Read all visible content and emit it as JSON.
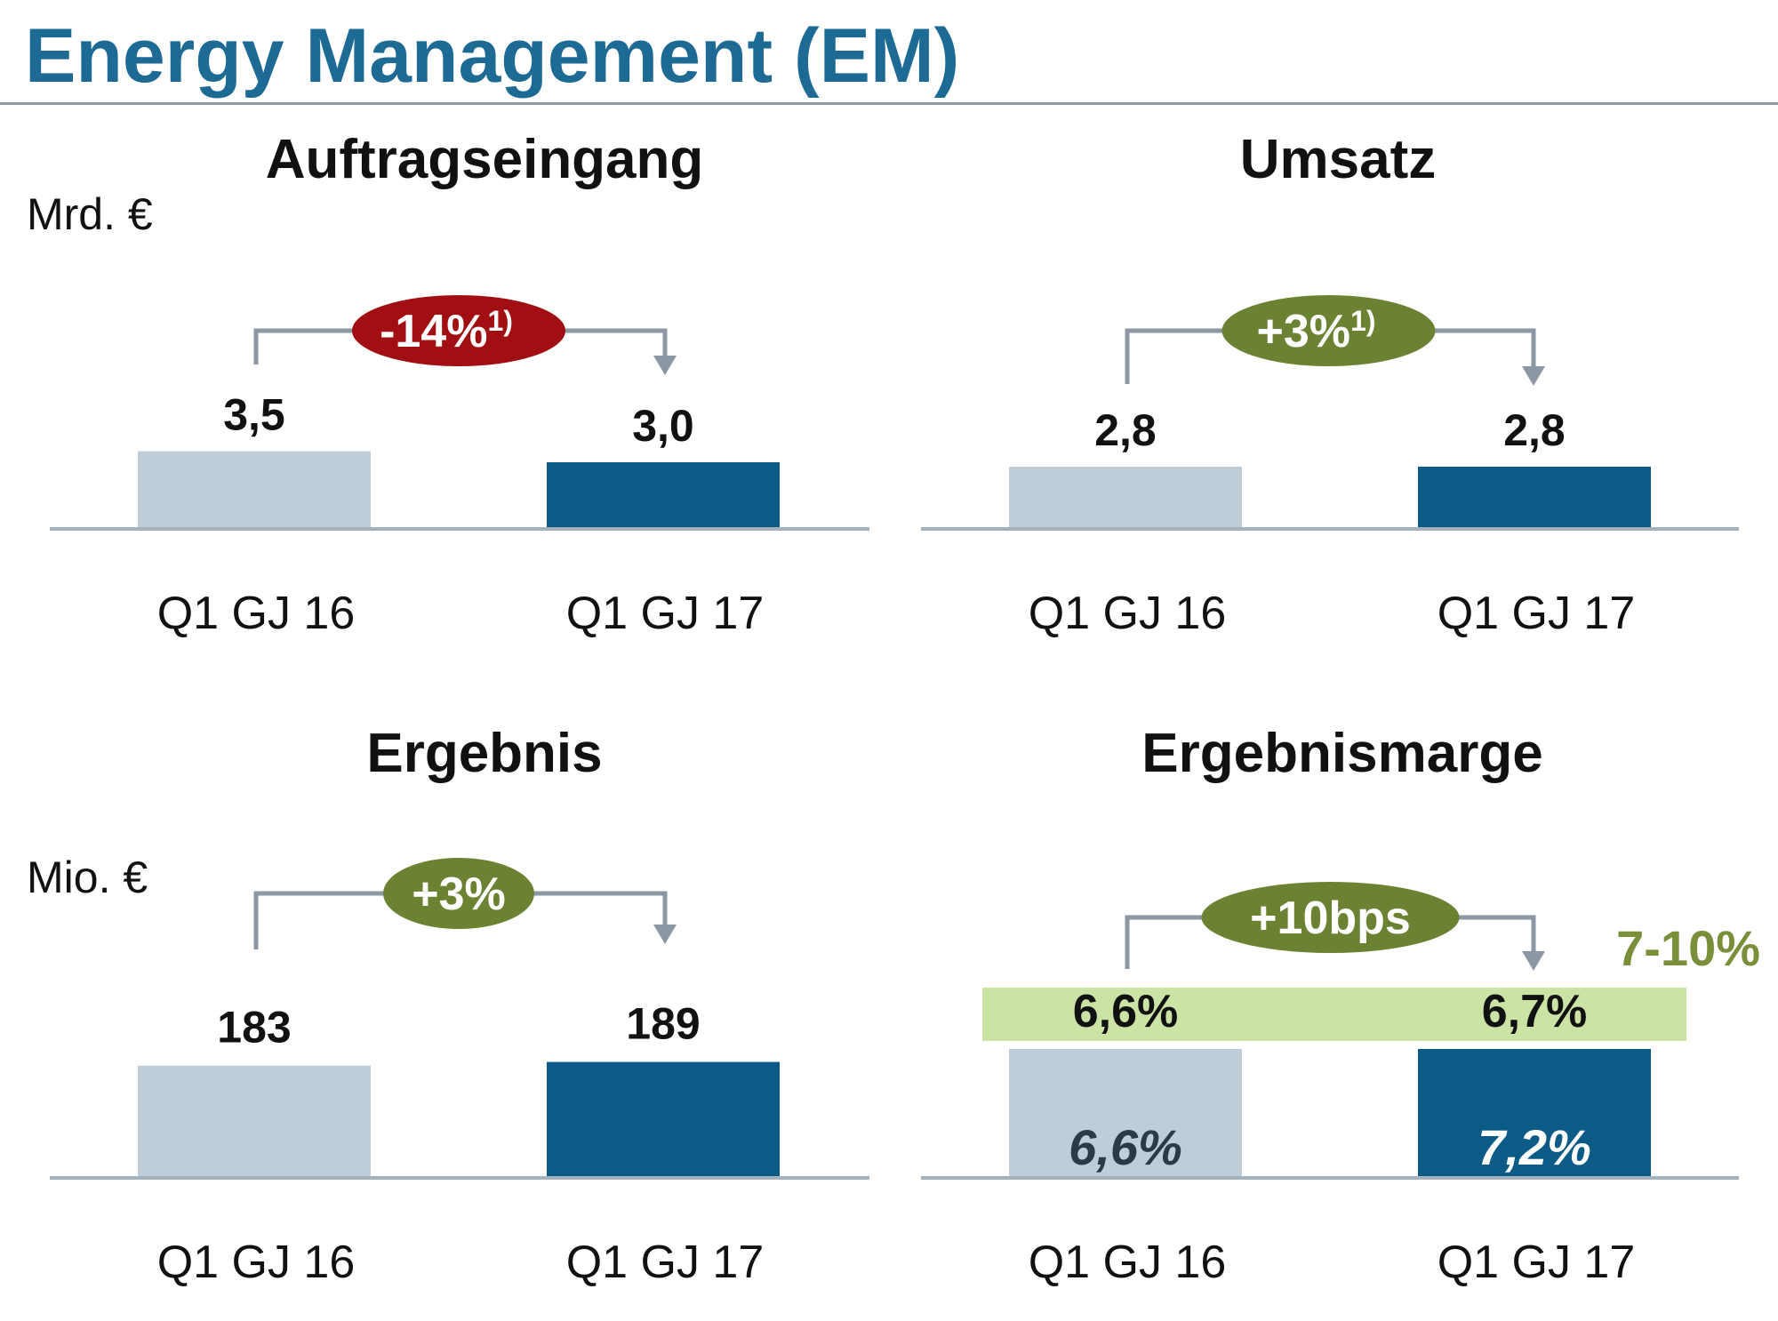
{
  "page_title": "Energy Management (EM)",
  "colors": {
    "title": "#1d6a94",
    "bar_prior": "#bfcdd8",
    "bar_current": "#0b5b86",
    "axis": "#a3b1bd",
    "bracket": "#8b97a3",
    "badge_negative": "#a20f12",
    "badge_positive": "#6b8233",
    "target_band": "#cce3a6",
    "target_text": "#7a8f3a"
  },
  "chart_data": [
    {
      "type": "bar",
      "title": "Auftragseingang",
      "unit_label": "Mrd. €",
      "categories": [
        "Q1 GJ 16",
        "Q1 GJ 17"
      ],
      "values": [
        3.5,
        3.0
      ],
      "value_labels": [
        "3,5",
        "3,0"
      ],
      "change_badge": {
        "text": "-14%",
        "footnote": "1)",
        "tone": "negative"
      }
    },
    {
      "type": "bar",
      "title": "Umsatz",
      "unit_label": "",
      "categories": [
        "Q1 GJ 16",
        "Q1 GJ 17"
      ],
      "values": [
        2.8,
        2.8
      ],
      "value_labels": [
        "2,8",
        "2,8"
      ],
      "change_badge": {
        "text": "+3%",
        "footnote": "1)",
        "tone": "positive"
      }
    },
    {
      "type": "bar",
      "title": "Ergebnis",
      "unit_label": "Mio. €",
      "categories": [
        "Q1 GJ 16",
        "Q1 GJ 17"
      ],
      "values": [
        183,
        189
      ],
      "value_labels": [
        "183",
        "189"
      ],
      "change_badge": {
        "text": "+3%",
        "footnote": "",
        "tone": "positive"
      }
    },
    {
      "type": "bar",
      "title": "Ergebnismarge",
      "unit_label": "",
      "categories": [
        "Q1 GJ 16",
        "Q1 GJ 17"
      ],
      "values": [
        6.6,
        6.7
      ],
      "value_labels": [
        "6,6%",
        "6,7%"
      ],
      "inner_values": [
        6.6,
        7.2
      ],
      "inner_labels": [
        "6,6%",
        "7,2%"
      ],
      "target_range": {
        "text": "7-10%",
        "low": 7,
        "high": 10
      },
      "change_badge": {
        "text": "+10bps",
        "footnote": "",
        "tone": "positive"
      }
    }
  ]
}
